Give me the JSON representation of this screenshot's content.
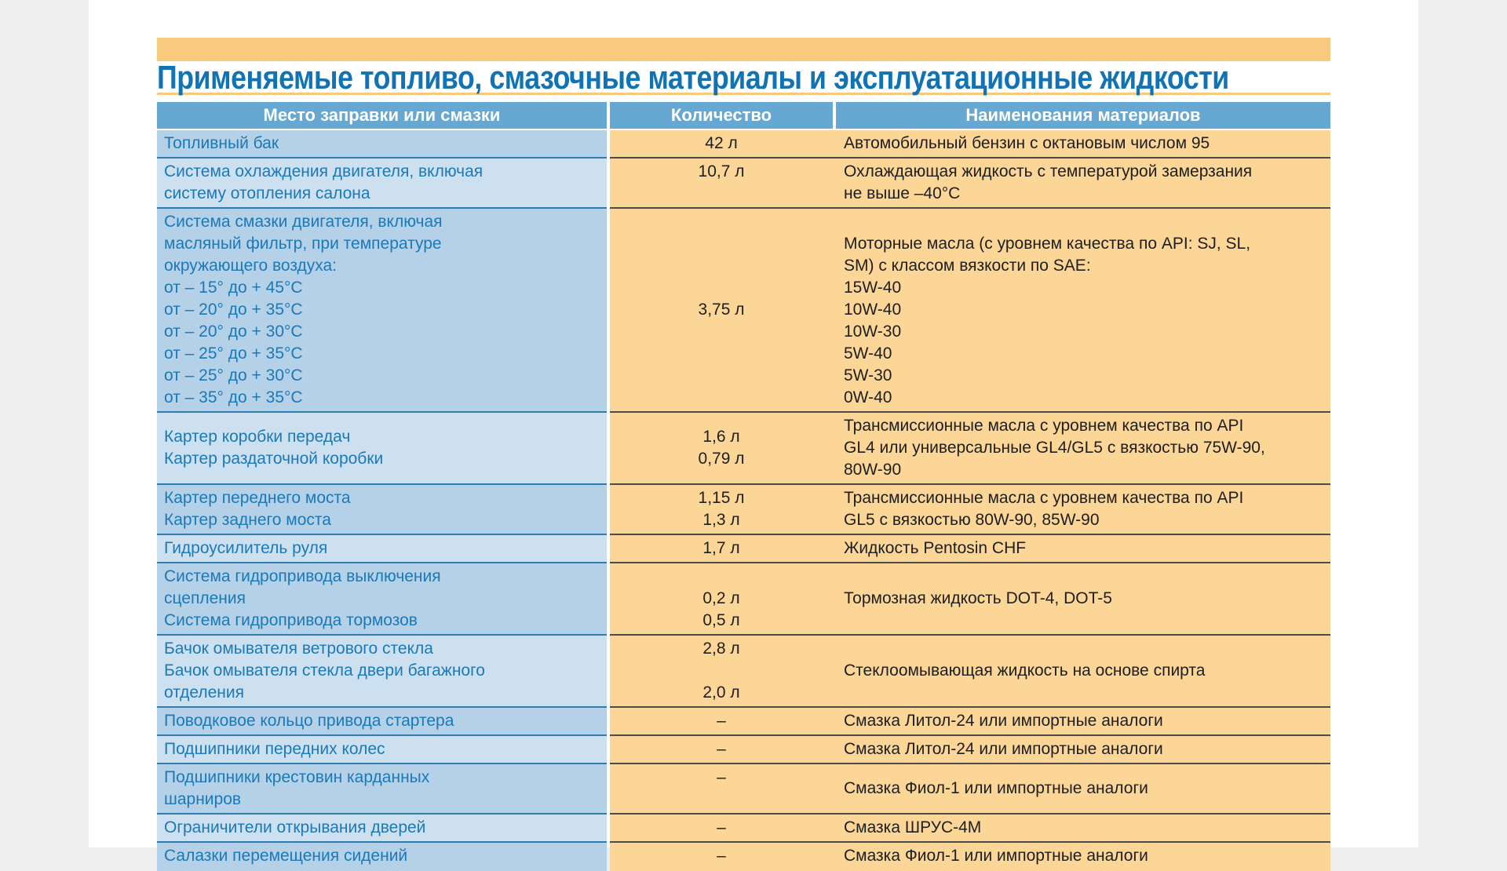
{
  "page": {
    "title": "Применяемые топливо, смазочные материалы и эксплуатационные жидкости"
  },
  "colors": {
    "accent_orange": "#F8CA7E",
    "cell_orange": "#FBD697",
    "header_blue": "#66A8D2",
    "row_blue_dark": "#B4D1E8",
    "row_blue_light": "#CDE0F0",
    "title_blue": "#1173B4",
    "text_blue": "#1B79B7",
    "text_dark": "#1E1E1E",
    "sep_blue": "#2E7CB0",
    "sep_dark": "#4A4A4A"
  },
  "table": {
    "headers": [
      "Место заправки или смазки",
      "Количество",
      "Наименования материалов"
    ],
    "rows": [
      {
        "shade": "dark",
        "place": [
          "Топливный бак"
        ],
        "qty": [
          "42 л"
        ],
        "materials": [
          "Автомобильный бензин с октановым числом 95"
        ]
      },
      {
        "shade": "light",
        "place": [
          "Система охлаждения двигателя, включая",
          "систему отопления салона"
        ],
        "qty": [
          "10,7 л"
        ],
        "materials": [
          "Охлаждающая жидкость с температурой замерзания",
          "не выше –40°C"
        ]
      },
      {
        "shade": "dark",
        "place": [
          "Система смазки двигателя, включая",
          "масляный фильтр, при температуре",
          "окружающего воздуха:",
          "от – 15° до + 45°C",
          "от – 20° до + 35°C",
          "от – 20° до + 30°C",
          "от – 25° до + 35°C",
          "от – 25° до + 30°C",
          "от – 35° до + 35°C"
        ],
        "qty": [
          "",
          "",
          "",
          "",
          "3,75 л"
        ],
        "materials": [
          "",
          "Моторные масла (с уровнем качества по API: SJ, SL,",
          "SM) с классом вязкости по SAE:",
          "15W-40",
          "10W-40",
          "10W-30",
          "5W-40",
          "5W-30",
          "0W-40"
        ]
      },
      {
        "shade": "light",
        "place_valign": "middle",
        "qty_valign": "middle",
        "place": [
          "Картер коробки передач",
          "Картер раздаточной коробки"
        ],
        "qty": [
          "1,6 л",
          "0,79 л"
        ],
        "materials": [
          "Трансмиссионные масла с уровнем качества по API",
          "GL4 или универсальные GL4/GL5 с вязкостью 75W-90,",
          "80W-90"
        ]
      },
      {
        "shade": "dark",
        "place": [
          "Картер переднего моста",
          "Картер заднего моста"
        ],
        "qty": [
          "1,15 л",
          "1,3 л"
        ],
        "materials": [
          "Трансмиссионные масла с уровнем качества по API",
          "GL5 с вязкостью 80W-90, 85W-90"
        ]
      },
      {
        "shade": "light",
        "place": [
          "Гидроусилитель руля"
        ],
        "qty": [
          "1,7 л"
        ],
        "materials": [
          "Жидкость Pentosin CHF"
        ]
      },
      {
        "shade": "dark",
        "place": [
          "Система гидропривода выключения",
          "сцепления",
          "Система гидропривода тормозов"
        ],
        "qty": [
          "",
          "0,2 л",
          "0,5 л"
        ],
        "materials": [
          "",
          "Тормозная жидкость DOT-4, DOT-5"
        ]
      },
      {
        "shade": "light",
        "place": [
          "Бачок омывателя ветрового стекла",
          "Бачок омывателя стекла двери багажного",
          "отделения"
        ],
        "qty": [
          "2,8 л",
          "",
          "2,0 л"
        ],
        "materials": [
          "",
          "Стеклоомывающая жидкость на основе спирта"
        ]
      },
      {
        "shade": "dark",
        "place": [
          "Поводковое кольцо привода стартера"
        ],
        "qty": [
          "–"
        ],
        "materials": [
          "Смазка Литол-24 или импортные аналоги"
        ]
      },
      {
        "shade": "light",
        "place": [
          "Подшипники передних колес"
        ],
        "qty": [
          "–"
        ],
        "materials": [
          "Смазка Литол-24 или импортные аналоги"
        ]
      },
      {
        "shade": "dark",
        "materials_valign": "middle",
        "place": [
          "Подшипники крестовин карданных",
          "шарниров"
        ],
        "qty": [
          "–"
        ],
        "materials": [
          "Смазка Фиол-1 или импортные аналоги"
        ]
      },
      {
        "shade": "light",
        "place": [
          "Ограничители открывания дверей"
        ],
        "qty": [
          "–"
        ],
        "materials": [
          "Смазка ШРУС-4М"
        ]
      },
      {
        "shade": "dark",
        "place": [
          "Салазки перемещения сидений"
        ],
        "qty": [
          "–"
        ],
        "materials": [
          "Смазка Фиол-1 или импортные аналоги"
        ]
      }
    ]
  }
}
